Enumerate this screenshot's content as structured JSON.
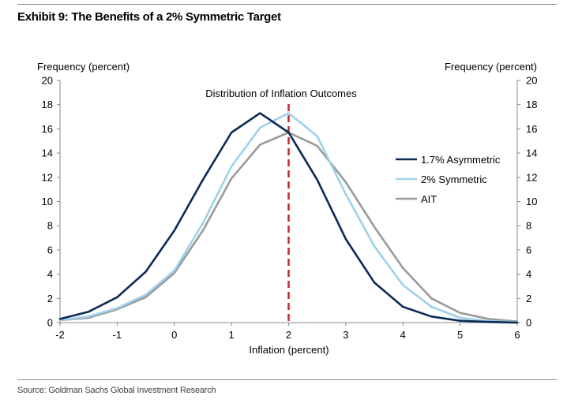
{
  "header": {
    "title": "Exhibit 9: The Benefits of a 2% Symmetric Target"
  },
  "footer": {
    "source": "Source: Goldman Sachs Global Investment Research"
  },
  "chart_data": {
    "type": "line",
    "title": "Distribution of Inflation Outcomes",
    "xlabel": "Inflation (percent)",
    "ylabel_left": "Frequency (percent)",
    "ylabel_right": "Frequency (percent)",
    "xlim": [
      -2,
      6
    ],
    "ylim": [
      0,
      20
    ],
    "xticks": [
      -2,
      -1,
      0,
      1,
      2,
      3,
      4,
      5,
      6
    ],
    "yticks": [
      0,
      2,
      4,
      6,
      8,
      10,
      12,
      14,
      16,
      18,
      20
    ],
    "grid": false,
    "legend_position": "right",
    "reference_line": {
      "x": 2,
      "style": "dashed",
      "color": "#c0282d"
    },
    "x": [
      -2,
      -1.5,
      -1,
      -0.5,
      0,
      0.5,
      1,
      1.5,
      2,
      2.5,
      3,
      3.5,
      4,
      4.5,
      5,
      5.5,
      6
    ],
    "series": [
      {
        "name": "1.7% Asymmetric",
        "color": "#0b2a55",
        "values": [
          0.3,
          0.9,
          2.1,
          4.2,
          7.6,
          11.8,
          15.7,
          17.3,
          15.7,
          11.8,
          6.9,
          3.3,
          1.3,
          0.5,
          0.15,
          0.05,
          0.0
        ]
      },
      {
        "name": "2% Symmetric",
        "color": "#9fd0ee",
        "values": [
          0.2,
          0.5,
          1.2,
          2.3,
          4.3,
          8.2,
          12.9,
          16.1,
          17.3,
          15.4,
          10.6,
          6.3,
          3.1,
          1.3,
          0.4,
          0.12,
          0.03
        ]
      },
      {
        "name": "AIT",
        "color": "#9a9a9a",
        "values": [
          0.2,
          0.4,
          1.1,
          2.1,
          4.1,
          7.6,
          11.9,
          14.7,
          15.7,
          14.6,
          11.6,
          7.9,
          4.5,
          2.0,
          0.8,
          0.3,
          0.1
        ]
      }
    ]
  }
}
